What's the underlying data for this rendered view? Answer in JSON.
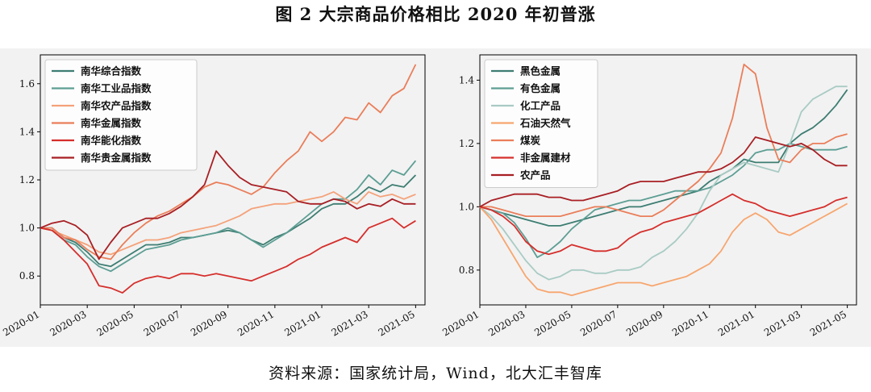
{
  "figure": {
    "title": "图 2  大宗商品价格相比 2020 年初普涨",
    "source": "资料来源：国家统计局，Wind，北大汇丰智库"
  },
  "chart_data": [
    {
      "type": "line",
      "x_ticks": [
        "2020-01",
        "2020-03",
        "2020-05",
        "2020-07",
        "2020-09",
        "2020-11",
        "2021-01",
        "2021-03",
        "2021-05"
      ],
      "y_ticks": [
        "0.8",
        "1.0",
        "1.2",
        "1.4",
        "1.6"
      ],
      "ylim": [
        0.68,
        1.72
      ],
      "xlim": [
        0,
        16.4
      ],
      "legend_position": "upper-left",
      "series": [
        {
          "name": "南华综合指数",
          "color": "#3d7d72",
          "x": [
            0,
            0.5,
            1,
            1.5,
            2,
            2.5,
            3,
            3.5,
            4,
            4.5,
            5,
            5.5,
            6,
            6.5,
            7,
            7.5,
            8,
            8.5,
            9,
            9.5,
            10,
            10.5,
            11,
            11.5,
            12,
            12.5,
            13,
            13.5,
            14,
            14.5,
            15,
            15.5,
            16
          ],
          "values": [
            1.0,
            1.0,
            0.96,
            0.94,
            0.9,
            0.85,
            0.84,
            0.87,
            0.9,
            0.93,
            0.93,
            0.94,
            0.96,
            0.96,
            0.97,
            0.98,
            0.99,
            0.98,
            0.95,
            0.93,
            0.96,
            0.98,
            1.01,
            1.04,
            1.08,
            1.1,
            1.1,
            1.13,
            1.17,
            1.15,
            1.18,
            1.17,
            1.22
          ]
        },
        {
          "name": "南华工业品指数",
          "color": "#5d9e94",
          "x": [
            0,
            0.5,
            1,
            1.5,
            2,
            2.5,
            3,
            3.5,
            4,
            4.5,
            5,
            5.5,
            6,
            6.5,
            7,
            7.5,
            8,
            8.5,
            9,
            9.5,
            10,
            10.5,
            11,
            11.5,
            12,
            12.5,
            13,
            13.5,
            14,
            14.5,
            15,
            15.5,
            16
          ],
          "values": [
            1.0,
            0.99,
            0.95,
            0.93,
            0.88,
            0.84,
            0.82,
            0.85,
            0.88,
            0.91,
            0.92,
            0.93,
            0.95,
            0.96,
            0.97,
            0.98,
            1.0,
            0.98,
            0.95,
            0.92,
            0.95,
            0.98,
            1.02,
            1.06,
            1.1,
            1.12,
            1.12,
            1.16,
            1.22,
            1.18,
            1.24,
            1.22,
            1.28
          ]
        },
        {
          "name": "南华农产品指数",
          "color": "#f4a27a",
          "x": [
            0,
            0.5,
            1,
            1.5,
            2,
            2.5,
            3,
            3.5,
            4,
            4.5,
            5,
            5.5,
            6,
            6.5,
            7,
            7.5,
            8,
            8.5,
            9,
            9.5,
            10,
            10.5,
            11,
            11.5,
            12,
            12.5,
            13,
            13.5,
            14,
            14.5,
            15,
            15.5,
            16
          ],
          "values": [
            1.0,
            0.99,
            0.97,
            0.95,
            0.93,
            0.9,
            0.89,
            0.91,
            0.93,
            0.95,
            0.95,
            0.96,
            0.98,
            0.99,
            1.0,
            1.01,
            1.03,
            1.05,
            1.08,
            1.09,
            1.1,
            1.1,
            1.11,
            1.12,
            1.13,
            1.15,
            1.12,
            1.1,
            1.15,
            1.13,
            1.14,
            1.12,
            1.14
          ]
        },
        {
          "name": "南华金属指数",
          "color": "#ea7e5a",
          "x": [
            0,
            0.5,
            1,
            1.5,
            2,
            2.5,
            3,
            3.5,
            4,
            4.5,
            5,
            5.5,
            6,
            6.5,
            7,
            7.5,
            8,
            8.5,
            9,
            9.5,
            10,
            10.5,
            11,
            11.5,
            12,
            12.5,
            13,
            13.5,
            14,
            14.5,
            15,
            15.5,
            16
          ],
          "values": [
            1.0,
            1.0,
            0.96,
            0.95,
            0.91,
            0.88,
            0.87,
            0.93,
            0.98,
            1.02,
            1.05,
            1.07,
            1.1,
            1.13,
            1.17,
            1.19,
            1.18,
            1.16,
            1.14,
            1.17,
            1.23,
            1.28,
            1.32,
            1.4,
            1.36,
            1.4,
            1.46,
            1.45,
            1.52,
            1.48,
            1.55,
            1.58,
            1.68
          ]
        },
        {
          "name": "南华能化指数",
          "color": "#d52f2c",
          "x": [
            0,
            0.5,
            1,
            1.5,
            2,
            2.5,
            3,
            3.5,
            4,
            4.5,
            5,
            5.5,
            6,
            6.5,
            7,
            7.5,
            8,
            8.5,
            9,
            9.5,
            10,
            10.5,
            11,
            11.5,
            12,
            12.5,
            13,
            13.5,
            14,
            14.5,
            15,
            15.5,
            16
          ],
          "values": [
            1.0,
            0.99,
            0.95,
            0.9,
            0.85,
            0.76,
            0.75,
            0.73,
            0.77,
            0.79,
            0.8,
            0.79,
            0.81,
            0.81,
            0.8,
            0.81,
            0.8,
            0.79,
            0.78,
            0.8,
            0.82,
            0.84,
            0.87,
            0.89,
            0.92,
            0.94,
            0.96,
            0.94,
            1.0,
            1.02,
            1.04,
            1.0,
            1.03
          ]
        },
        {
          "name": "南华贵金属指数",
          "color": "#a81f24",
          "x": [
            0,
            0.5,
            1,
            1.5,
            2,
            2.5,
            3,
            3.5,
            4,
            4.5,
            5,
            5.5,
            6,
            6.5,
            7,
            7.5,
            8,
            8.5,
            9,
            9.5,
            10,
            10.5,
            11,
            11.5,
            12,
            12.5,
            13,
            13.5,
            14,
            14.5,
            15,
            15.5,
            16
          ],
          "values": [
            1.0,
            1.02,
            1.03,
            1.01,
            0.97,
            0.87,
            0.94,
            1.0,
            1.02,
            1.04,
            1.04,
            1.06,
            1.09,
            1.13,
            1.18,
            1.32,
            1.26,
            1.21,
            1.18,
            1.17,
            1.16,
            1.15,
            1.11,
            1.1,
            1.1,
            1.12,
            1.11,
            1.08,
            1.1,
            1.09,
            1.12,
            1.1,
            1.1
          ]
        }
      ]
    },
    {
      "type": "line",
      "x_ticks": [
        "2020-01",
        "2020-03",
        "2020-05",
        "2020-07",
        "2020-09",
        "2020-11",
        "2021-01",
        "2021-03",
        "2021-05"
      ],
      "y_ticks": [
        "0.8",
        "1.0",
        "1.2",
        "1.4"
      ],
      "ylim": [
        0.69,
        1.48
      ],
      "xlim": [
        0,
        16.4
      ],
      "legend_position": "upper-left",
      "series": [
        {
          "name": "黑色金属",
          "color": "#3d7d72",
          "x": [
            0,
            0.5,
            1,
            1.5,
            2,
            2.5,
            3,
            3.5,
            4,
            4.5,
            5,
            5.5,
            6,
            6.5,
            7,
            7.5,
            8,
            8.5,
            9,
            9.5,
            10,
            10.5,
            11,
            11.5,
            12,
            12.5,
            13,
            13.5,
            14,
            14.5,
            15,
            15.5,
            16
          ],
          "values": [
            1.0,
            0.99,
            0.98,
            0.97,
            0.96,
            0.95,
            0.94,
            0.94,
            0.95,
            0.96,
            0.97,
            0.98,
            0.99,
            1.0,
            1.0,
            1.01,
            1.02,
            1.03,
            1.04,
            1.05,
            1.08,
            1.1,
            1.12,
            1.15,
            1.14,
            1.14,
            1.14,
            1.2,
            1.23,
            1.25,
            1.28,
            1.32,
            1.37
          ]
        },
        {
          "name": "有色金属",
          "color": "#5d9e94",
          "x": [
            0,
            0.5,
            1,
            1.5,
            2,
            2.5,
            3,
            3.5,
            4,
            4.5,
            5,
            5.5,
            6,
            6.5,
            7,
            7.5,
            8,
            8.5,
            9,
            9.5,
            10,
            10.5,
            11,
            11.5,
            12,
            12.5,
            13,
            13.5,
            14,
            14.5,
            15,
            15.5,
            16
          ],
          "values": [
            1.0,
            0.99,
            0.98,
            0.95,
            0.9,
            0.84,
            0.86,
            0.89,
            0.93,
            0.96,
            0.99,
            1.0,
            1.01,
            1.02,
            1.02,
            1.03,
            1.04,
            1.05,
            1.05,
            1.05,
            1.06,
            1.08,
            1.1,
            1.13,
            1.17,
            1.18,
            1.18,
            1.2,
            1.19,
            1.18,
            1.18,
            1.18,
            1.19
          ]
        },
        {
          "name": "化工产品",
          "color": "#a9cbc4",
          "x": [
            0,
            0.5,
            1,
            1.5,
            2,
            2.5,
            3,
            3.5,
            4,
            4.5,
            5,
            5.5,
            6,
            6.5,
            7,
            7.5,
            8,
            8.5,
            9,
            9.5,
            10,
            10.5,
            11,
            11.5,
            12,
            12.5,
            13,
            13.5,
            14,
            14.5,
            15,
            15.5,
            16
          ],
          "values": [
            1.0,
            0.97,
            0.93,
            0.88,
            0.83,
            0.79,
            0.77,
            0.78,
            0.8,
            0.8,
            0.79,
            0.79,
            0.8,
            0.8,
            0.81,
            0.84,
            0.86,
            0.89,
            0.93,
            0.98,
            1.05,
            1.1,
            1.12,
            1.14,
            1.13,
            1.12,
            1.11,
            1.2,
            1.3,
            1.34,
            1.36,
            1.38,
            1.38
          ]
        },
        {
          "name": "石油天然气",
          "color": "#f7a66f",
          "x": [
            0,
            0.5,
            1,
            1.5,
            2,
            2.5,
            3,
            3.5,
            4,
            4.5,
            5,
            5.5,
            6,
            6.5,
            7,
            7.5,
            8,
            8.5,
            9,
            9.5,
            10,
            10.5,
            11,
            11.5,
            12,
            12.5,
            13,
            13.5,
            14,
            14.5,
            15,
            15.5,
            16
          ],
          "values": [
            1.0,
            0.96,
            0.9,
            0.84,
            0.78,
            0.74,
            0.73,
            0.73,
            0.72,
            0.73,
            0.74,
            0.75,
            0.76,
            0.76,
            0.76,
            0.75,
            0.76,
            0.77,
            0.78,
            0.8,
            0.82,
            0.86,
            0.92,
            0.96,
            0.98,
            0.96,
            0.92,
            0.91,
            0.93,
            0.95,
            0.97,
            0.99,
            1.01
          ]
        },
        {
          "name": "煤炭",
          "color": "#ea7e5a",
          "x": [
            0,
            0.5,
            1,
            1.5,
            2,
            2.5,
            3,
            3.5,
            4,
            4.5,
            5,
            5.5,
            6,
            6.5,
            7,
            7.5,
            8,
            8.5,
            9,
            9.5,
            10,
            10.5,
            11,
            11.5,
            12,
            12.5,
            13,
            13.5,
            14,
            14.5,
            15,
            15.5,
            16
          ],
          "values": [
            1.0,
            1.0,
            0.99,
            0.98,
            0.97,
            0.97,
            0.97,
            0.97,
            0.98,
            0.99,
            1.0,
            1.0,
            0.99,
            0.98,
            0.97,
            0.97,
            0.99,
            1.02,
            1.05,
            1.08,
            1.12,
            1.17,
            1.28,
            1.45,
            1.42,
            1.25,
            1.15,
            1.14,
            1.18,
            1.2,
            1.2,
            1.22,
            1.23
          ]
        },
        {
          "name": "非金属建材",
          "color": "#d52f2c",
          "x": [
            0,
            0.5,
            1,
            1.5,
            2,
            2.5,
            3,
            3.5,
            4,
            4.5,
            5,
            5.5,
            6,
            6.5,
            7,
            7.5,
            8,
            8.5,
            9,
            9.5,
            10,
            10.5,
            11,
            11.5,
            12,
            12.5,
            13,
            13.5,
            14,
            14.5,
            15,
            15.5,
            16
          ],
          "values": [
            1.0,
            0.99,
            0.97,
            0.94,
            0.89,
            0.86,
            0.85,
            0.86,
            0.88,
            0.87,
            0.86,
            0.86,
            0.87,
            0.9,
            0.92,
            0.93,
            0.95,
            0.96,
            0.97,
            0.98,
            1.0,
            1.02,
            1.04,
            1.02,
            1.01,
            0.99,
            0.98,
            0.97,
            0.98,
            0.99,
            1.0,
            1.02,
            1.03
          ]
        },
        {
          "name": "农产品",
          "color": "#a81f24",
          "x": [
            0,
            0.5,
            1,
            1.5,
            2,
            2.5,
            3,
            3.5,
            4,
            4.5,
            5,
            5.5,
            6,
            6.5,
            7,
            7.5,
            8,
            8.5,
            9,
            9.5,
            10,
            10.5,
            11,
            11.5,
            12,
            12.5,
            13,
            13.5,
            14,
            14.5,
            15,
            15.5,
            16
          ],
          "values": [
            1.0,
            1.02,
            1.03,
            1.04,
            1.04,
            1.04,
            1.03,
            1.03,
            1.02,
            1.02,
            1.03,
            1.04,
            1.05,
            1.07,
            1.08,
            1.08,
            1.08,
            1.09,
            1.1,
            1.11,
            1.11,
            1.12,
            1.14,
            1.17,
            1.22,
            1.21,
            1.2,
            1.19,
            1.2,
            1.18,
            1.15,
            1.13,
            1.13
          ]
        }
      ]
    }
  ]
}
